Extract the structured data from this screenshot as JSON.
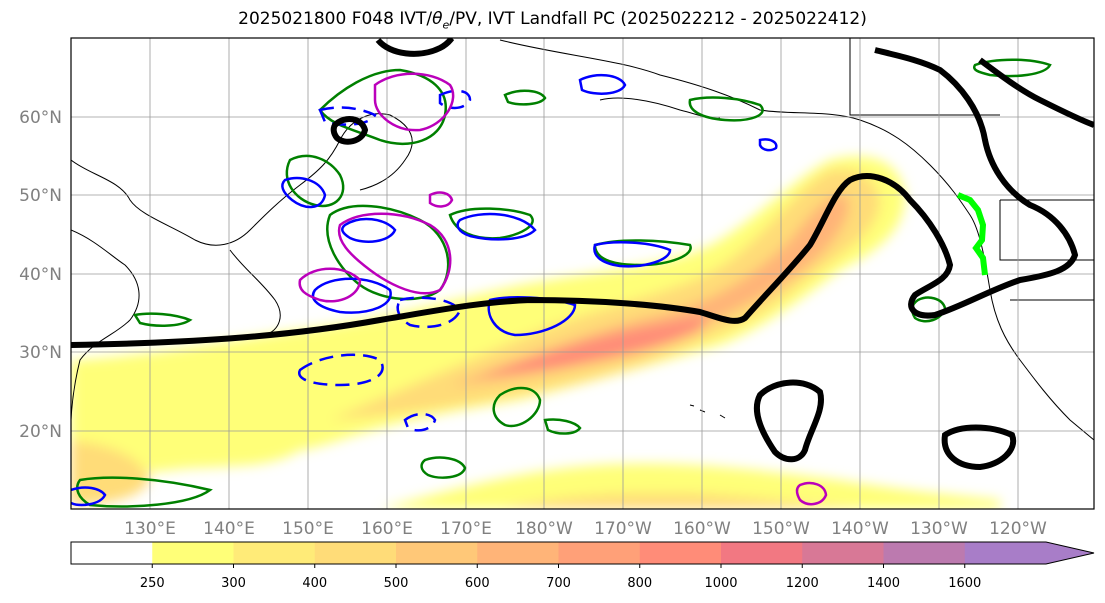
{
  "title_prefix": "2025021800 F048 IVT/",
  "title_theta": "θ",
  "title_sub": "e",
  "title_suffix": "/PV, IVT Landfall PC (2025022212 - 2025022412)",
  "lat_labels": [
    "20°N",
    "30°N",
    "40°N",
    "50°N",
    "60°N"
  ],
  "lon_labels": [
    "130°E",
    "140°E",
    "150°E",
    "160°E",
    "170°E",
    "180°W",
    "170°W",
    "160°W",
    "150°W",
    "140°W",
    "130°W",
    "120°W"
  ],
  "colorbar": {
    "levels": [
      "250",
      "300",
      "400",
      "500",
      "600",
      "700",
      "800",
      "1000",
      "1200",
      "1400",
      "1600"
    ],
    "colors": [
      "#ffffff",
      "#ffff78",
      "#ffeb78",
      "#ffdc78",
      "#ffc878",
      "#ffb478",
      "#ffa078",
      "#ff8c78",
      "#f27882",
      "#d87896",
      "#bc7aaf",
      "#a87dc8"
    ]
  },
  "legend_colors": {
    "ivt_pc": "#000000",
    "theta_e_positive": "#008000",
    "theta_e_negative": "#0000ff",
    "pv": "#bb00bb",
    "landfall": "#00ff00"
  }
}
